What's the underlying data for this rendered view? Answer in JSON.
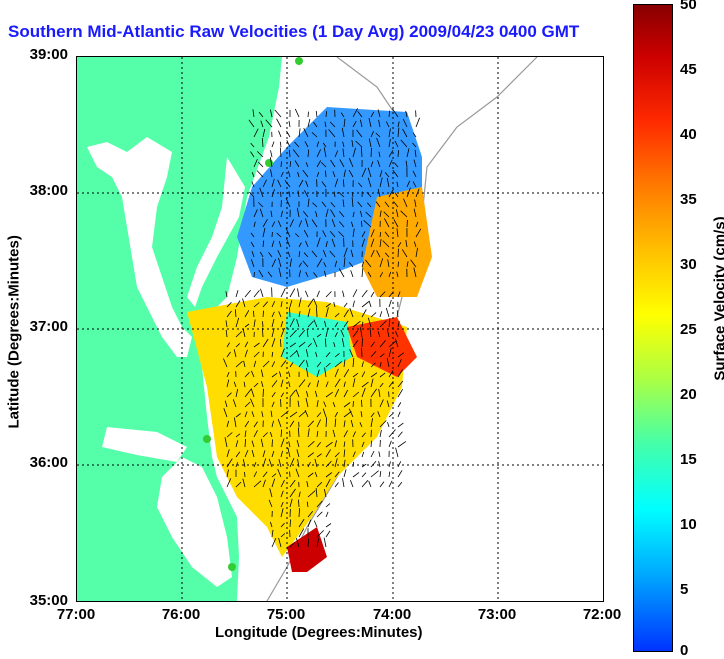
{
  "title": "Southern Mid-Atlantic Raw Velocities (1 Day Avg) 2009/04/23 0400 GMT",
  "axes": {
    "xlabel": "Longitude (Degrees:Minutes)",
    "ylabel": "Latitude (Degrees:Minutes)",
    "x_ticks": [
      "77:00",
      "76:00",
      "75:00",
      "74:00",
      "73:00",
      "72:00"
    ],
    "y_ticks": [
      "39:00",
      "38:00",
      "37:00",
      "36:00",
      "35:00"
    ]
  },
  "colorbar": {
    "label": "Surface Velocity (cm/s)",
    "ticks": [
      "50",
      "45",
      "40",
      "35",
      "30",
      "25",
      "20",
      "15",
      "10",
      "5",
      "0"
    ],
    "range": [
      0,
      50
    ]
  },
  "colors": {
    "land": "#55ffaa",
    "title": "#1a1aff",
    "arrows": "#000000",
    "contour": "#999999"
  }
}
